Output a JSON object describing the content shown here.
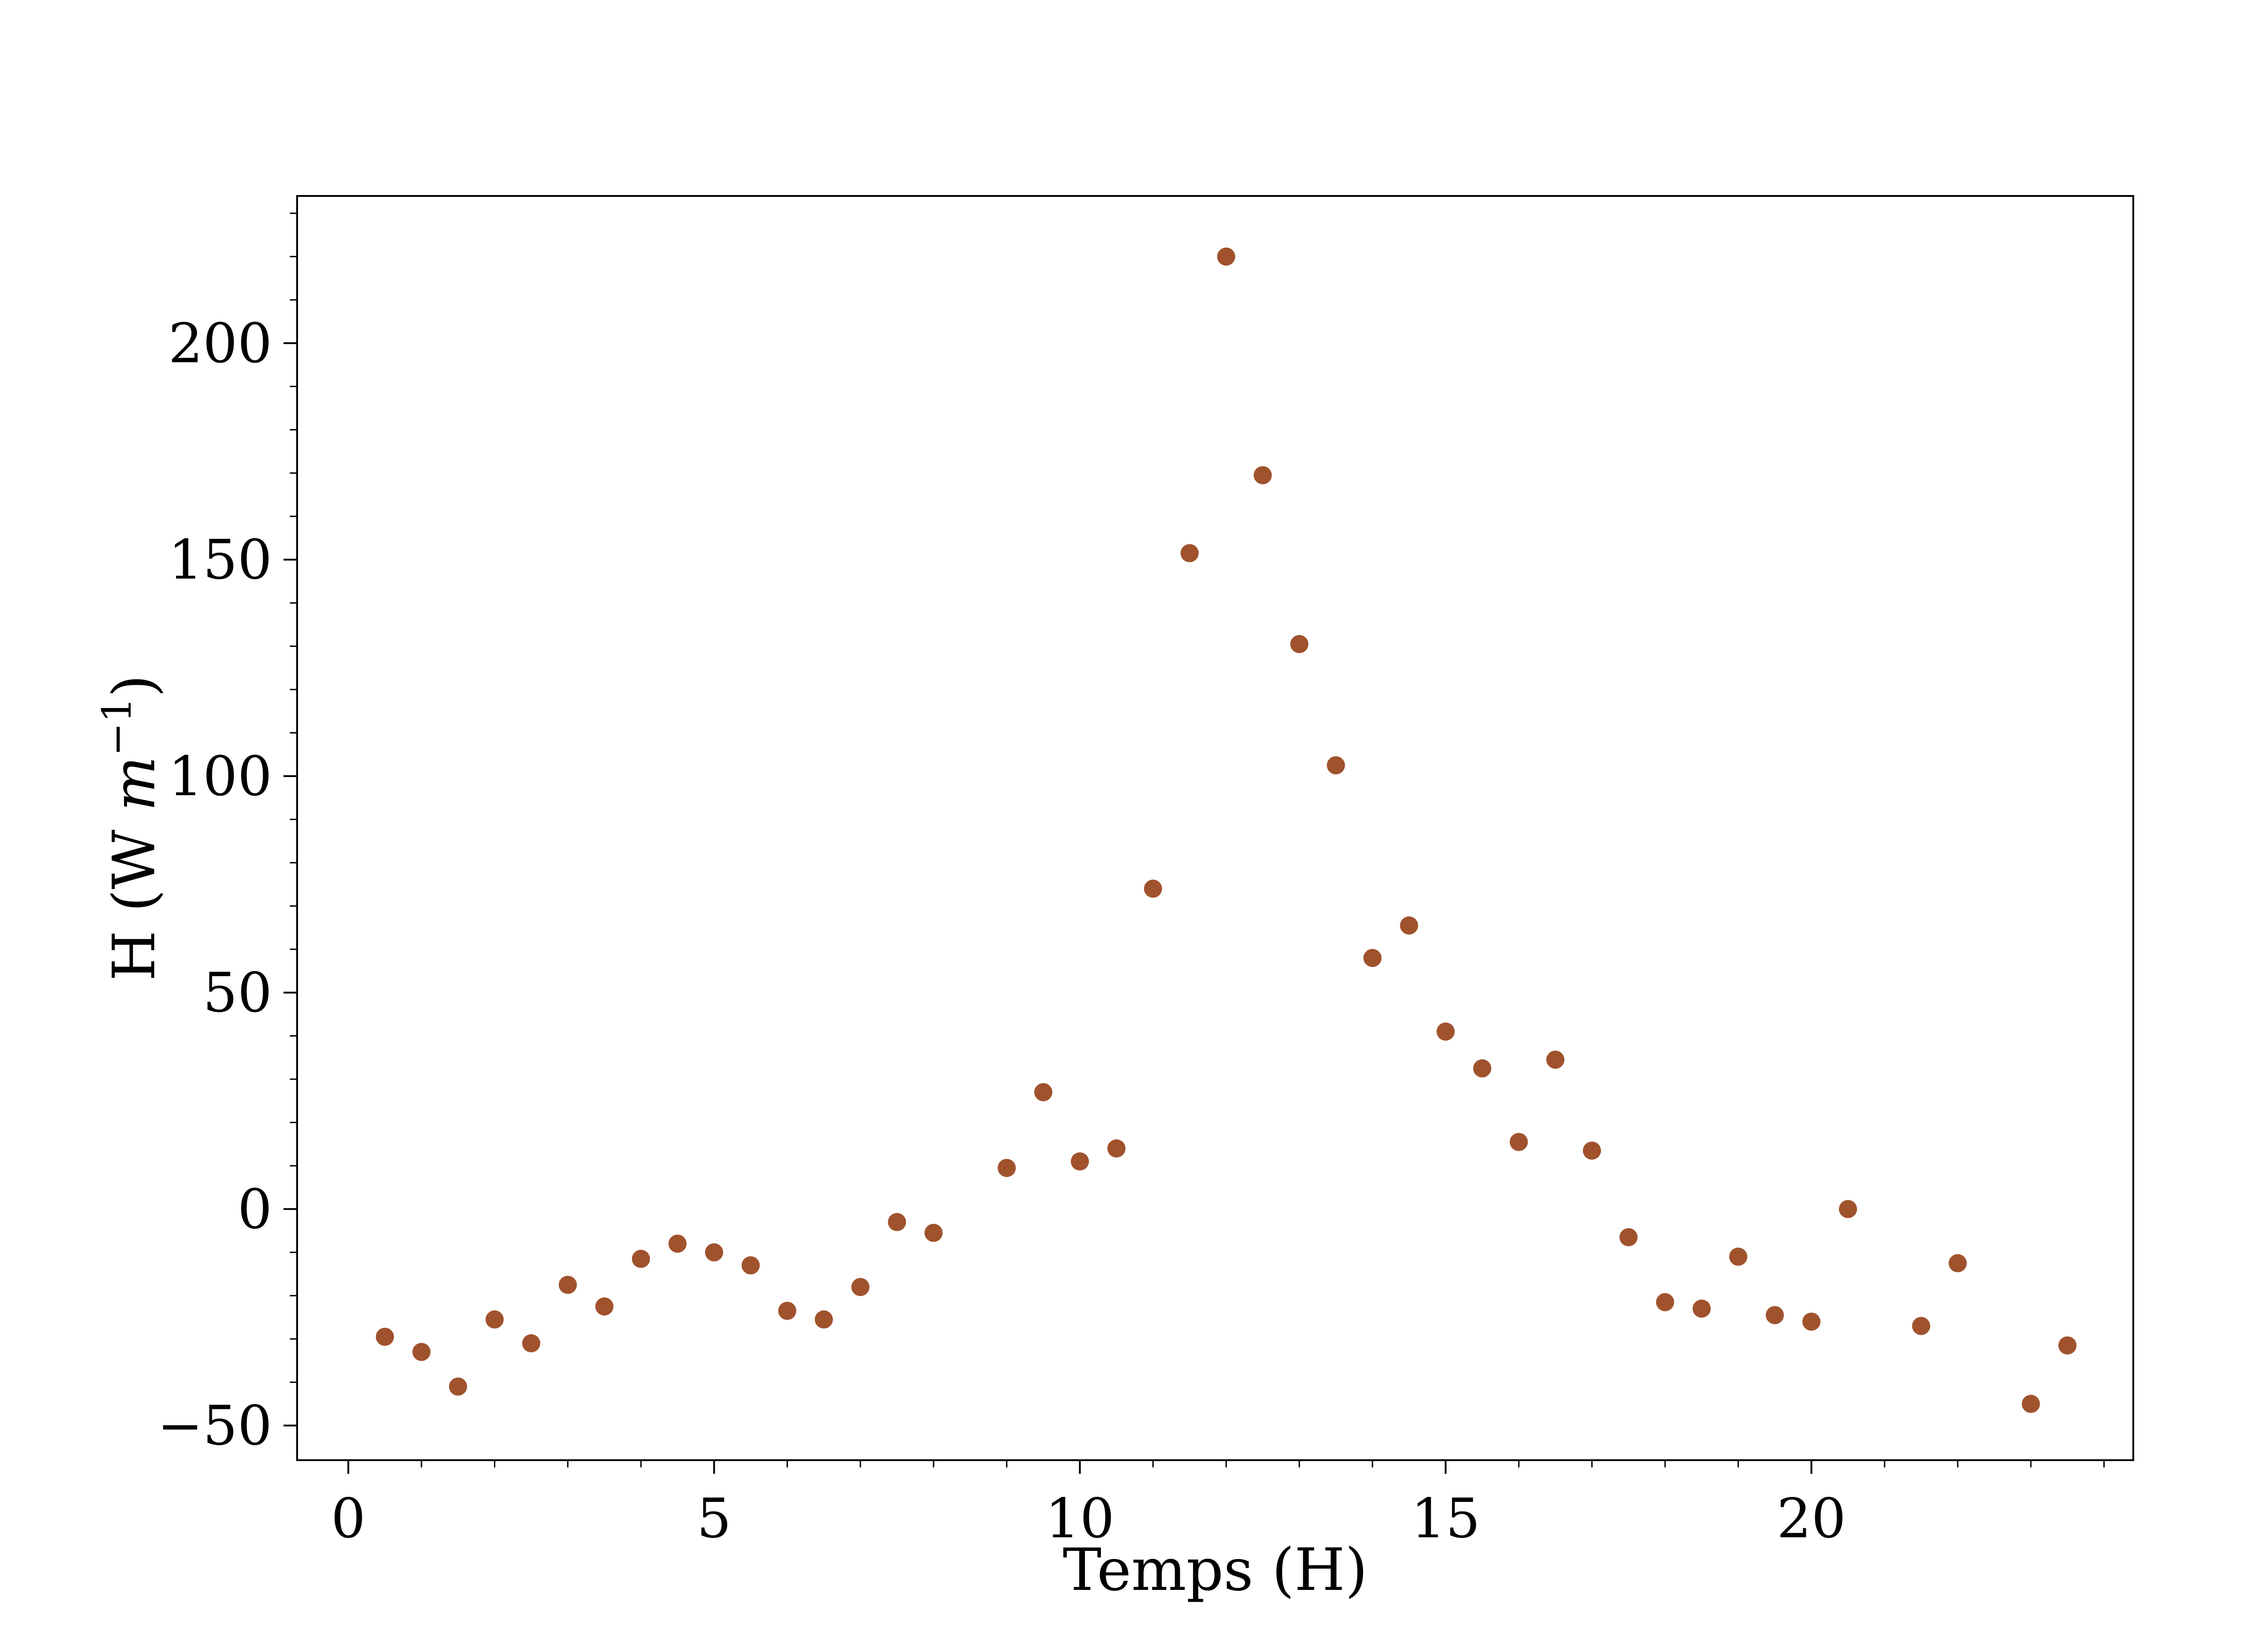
{
  "chart_data": {
    "type": "scatter",
    "xlabel": "Temps (H)",
    "ylabel": "H (W m⁻¹)",
    "ylabel_parts": {
      "prefix": "H (W ",
      "var": "m",
      "sup": "−1",
      "suffix": ")"
    },
    "xlim": [
      -0.7,
      24.4
    ],
    "ylim": [
      -58,
      234
    ],
    "x_ticks": [
      0,
      5,
      10,
      15,
      20
    ],
    "x_tick_labels": [
      "0",
      "5",
      "10",
      "15",
      "20"
    ],
    "y_ticks": [
      -50,
      0,
      50,
      100,
      150,
      200
    ],
    "y_tick_labels": [
      "−50",
      "0",
      "50",
      "100",
      "150",
      "200"
    ],
    "grid": false,
    "legend": false,
    "point_color": "#a0522d",
    "series": [
      {
        "x": [
          0.5,
          1.0,
          1.5,
          2.0,
          2.5,
          3.0,
          3.5,
          4.0,
          4.5,
          5.0,
          5.5,
          6.0,
          6.5,
          7.0,
          7.5,
          8.0,
          9.0,
          9.5,
          10.0,
          10.5,
          11.0,
          11.5,
          12.0,
          12.5,
          13.0,
          13.5,
          14.0,
          14.5,
          15.0,
          15.5,
          16.0,
          16.5,
          17.0,
          17.5,
          18.0,
          18.5,
          19.0,
          19.5,
          20.0,
          20.5,
          21.5,
          22.0,
          23.0,
          23.5
        ],
        "y": [
          -29.5,
          -33,
          -41,
          -25.5,
          -31,
          -17.5,
          -22.5,
          -11.5,
          -8,
          -10,
          -13,
          -23.5,
          -25.5,
          -18,
          -3,
          -5.5,
          9.5,
          27,
          11,
          14,
          74,
          151.5,
          220,
          169.5,
          130.5,
          102.5,
          58,
          65.5,
          41,
          32.5,
          15.5,
          34.5,
          13.5,
          -6.5,
          -21.5,
          -23,
          -11,
          -24.5,
          -26,
          0,
          -27,
          -12.5,
          -45,
          -31.5
        ]
      }
    ]
  }
}
